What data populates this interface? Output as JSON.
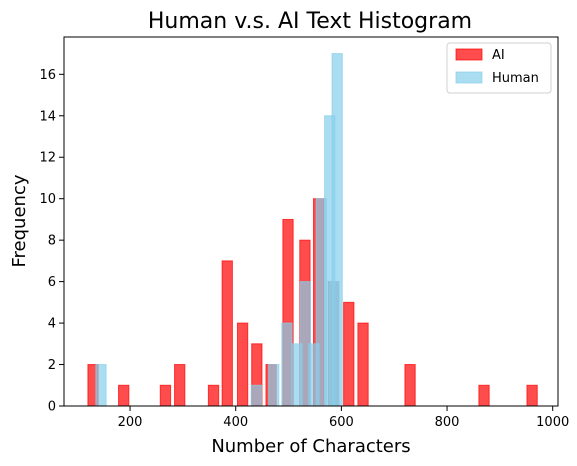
{
  "chart_data": {
    "type": "bar",
    "title": "Human v.s. AI Text Histogram",
    "xlabel": "Number of Characters",
    "ylabel": "Frequency",
    "xlim": [
      75,
      1010
    ],
    "ylim": [
      0,
      17.8
    ],
    "x_ticks": [
      200,
      400,
      600,
      800,
      1000
    ],
    "y_ticks": [
      0,
      2,
      4,
      6,
      8,
      10,
      12,
      14,
      16
    ],
    "legend_position": "top-right",
    "bar_width": 19.5,
    "series": [
      {
        "name": "AI",
        "color": "#ff0000",
        "alpha": 0.7,
        "bars": [
          {
            "x": 130,
            "value": 2
          },
          {
            "x": 188,
            "value": 1
          },
          {
            "x": 267,
            "value": 1
          },
          {
            "x": 294,
            "value": 2
          },
          {
            "x": 358,
            "value": 1
          },
          {
            "x": 384,
            "value": 7
          },
          {
            "x": 413,
            "value": 4
          },
          {
            "x": 440,
            "value": 3
          },
          {
            "x": 467,
            "value": 2
          },
          {
            "x": 499,
            "value": 9
          },
          {
            "x": 531,
            "value": 8
          },
          {
            "x": 557,
            "value": 10
          },
          {
            "x": 585,
            "value": 6
          },
          {
            "x": 614,
            "value": 5
          },
          {
            "x": 641,
            "value": 4
          },
          {
            "x": 730,
            "value": 2
          },
          {
            "x": 870,
            "value": 1
          },
          {
            "x": 961,
            "value": 1
          }
        ]
      },
      {
        "name": "Human",
        "color": "#87ceeb",
        "alpha": 0.7,
        "bars": [
          {
            "x": 145,
            "value": 2
          },
          {
            "x": 439,
            "value": 1
          },
          {
            "x": 472,
            "value": 2
          },
          {
            "x": 497,
            "value": 4
          },
          {
            "x": 516,
            "value": 3
          },
          {
            "x": 532,
            "value": 6
          },
          {
            "x": 548,
            "value": 3
          },
          {
            "x": 562,
            "value": 10
          },
          {
            "x": 578,
            "value": 14
          },
          {
            "x": 592,
            "value": 17
          },
          {
            "x": 586,
            "value": 6
          }
        ]
      }
    ]
  }
}
